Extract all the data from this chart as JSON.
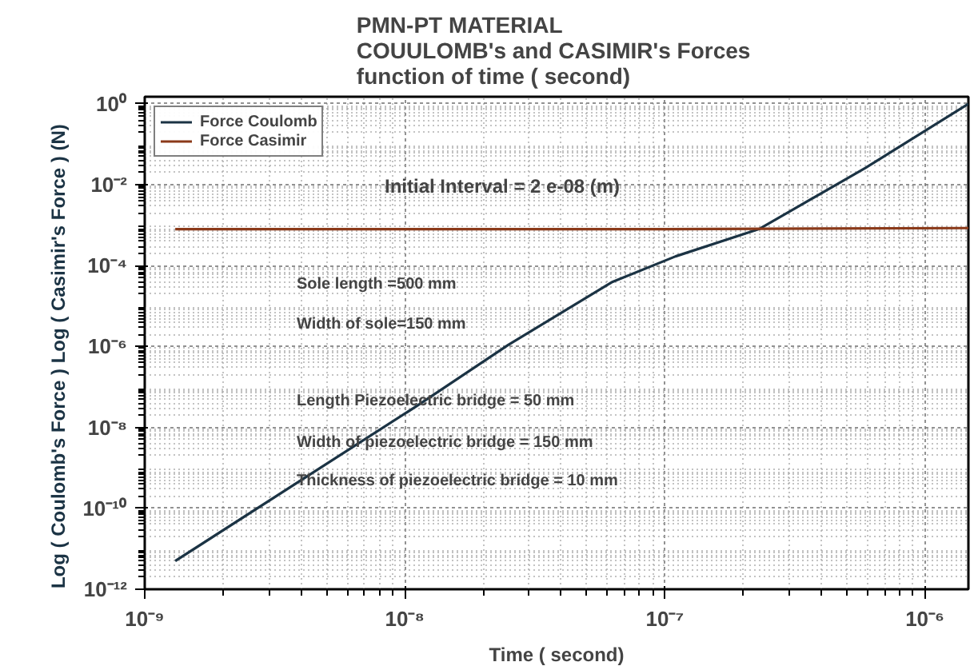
{
  "chart_data": {
    "type": "line",
    "title": "PMN-PT MATERIAL\nCOUULOMB's and CASIMIR's  Forces\nfunction of  time ( second)",
    "xlabel": "Time ( second)",
    "ylabel": "Log ( Coulomb's  Force ) Log ( Casimir's Force )     (N)",
    "log": "xy",
    "xlim": [
      1e-09,
      1.47e-06
    ],
    "ylim": [
      1e-12,
      1.5
    ],
    "xticks": [
      {
        "value": 1e-09,
        "label": "10⁻⁹"
      },
      {
        "value": 1e-08,
        "label": "10⁻⁸"
      },
      {
        "value": 1e-07,
        "label": "10⁻⁷"
      },
      {
        "value": 1e-06,
        "label": "10⁻⁶"
      }
    ],
    "yticks": [
      {
        "value": 1e-12,
        "label": "10⁻¹²"
      },
      {
        "value": 1e-10,
        "label": "10⁻¹⁰"
      },
      {
        "value": 1e-08,
        "label": "10⁻⁸"
      },
      {
        "value": 1e-06,
        "label": "10⁻⁶"
      },
      {
        "value": 0.0001,
        "label": "10⁻⁴"
      },
      {
        "value": 0.01,
        "label": "10⁻²"
      },
      {
        "value": 1,
        "label": "10⁰"
      }
    ],
    "grid": true,
    "legend": "top left",
    "series": [
      {
        "name": "Force Coulomb",
        "color": "#1b3344",
        "x": [
          1.31e-09,
          1.12e-08,
          2.5e-08,
          6.3e-08,
          1.1e-07,
          2.3e-07,
          5.9e-07,
          1.47e-06
        ],
        "values": [
          5e-12,
          3.5e-08,
          1.1e-06,
          4e-05,
          0.00017,
          0.0008,
          0.026,
          1.0
        ]
      },
      {
        "name": "Force Casimir",
        "color": "#8b3a1a",
        "x": [
          1.31e-09,
          1e-07,
          1.47e-06
        ],
        "values": [
          0.0008,
          0.0008,
          0.00085
        ]
      }
    ],
    "annotations": [
      "Initial Interval = 2 e-08 (m)",
      "Sole length =500 mm",
      "Width of sole=150 mm",
      "Length Piezoelectric bridge = 50 mm",
      "Width of piezoelectric bridge = 150 mm",
      "Thickness of piezoelectric bridge = 10 mm"
    ]
  }
}
